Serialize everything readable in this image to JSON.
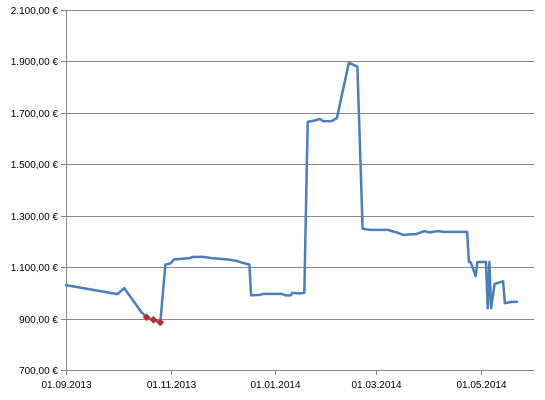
{
  "chart_data": {
    "type": "line",
    "title": "",
    "xlabel": "",
    "ylabel": "",
    "ylim": [
      700,
      2100
    ],
    "y_ticks": [
      {
        "value": 700,
        "label": "700,00 €"
      },
      {
        "value": 900,
        "label": "900,00 €"
      },
      {
        "value": 1100,
        "label": "1.100,00 €"
      },
      {
        "value": 1300,
        "label": "1.300,00 €"
      },
      {
        "value": 1500,
        "label": "1.500,00 €"
      },
      {
        "value": 1700,
        "label": "1.700,00 €"
      },
      {
        "value": 1900,
        "label": "1.900,00 €"
      },
      {
        "value": 2100,
        "label": "2.100,00 €"
      }
    ],
    "xlim": [
      "2013-09-01",
      "2014-06-01"
    ],
    "x_ticks": [
      {
        "value": "2013-09-01",
        "label": "01.09.2013"
      },
      {
        "value": "2013-11-01",
        "label": "01.11.2013"
      },
      {
        "value": "2014-01-01",
        "label": "01.01.2014"
      },
      {
        "value": "2014-03-01",
        "label": "01.03.2014"
      },
      {
        "value": "2014-05-01",
        "label": "01.05.2014"
      }
    ],
    "grid": "horizontal",
    "series_color": "#4a7ebb",
    "highlight_color": "#c0272d",
    "series": [
      {
        "points": [
          [
            "2013-09-01",
            1030
          ],
          [
            "2013-10-01",
            995
          ],
          [
            "2013-10-05",
            1018
          ],
          [
            "2013-10-15",
            925
          ],
          [
            "2013-10-18",
            905
          ],
          [
            "2013-10-22",
            895
          ],
          [
            "2013-10-26",
            885
          ],
          [
            "2013-10-29",
            1110
          ],
          [
            "2013-11-01",
            1115
          ],
          [
            "2013-11-03",
            1130
          ],
          [
            "2013-11-12",
            1135
          ],
          [
            "2013-11-14",
            1140
          ],
          [
            "2013-11-20",
            1140
          ],
          [
            "2013-11-25",
            1135
          ],
          [
            "2013-12-04",
            1130
          ],
          [
            "2013-12-09",
            1125
          ],
          [
            "2013-12-14",
            1115
          ],
          [
            "2013-12-17",
            1110
          ],
          [
            "2013-12-18",
            990
          ],
          [
            "2013-12-23",
            992
          ],
          [
            "2013-12-25",
            996
          ],
          [
            "2014-01-05",
            996
          ],
          [
            "2014-01-07",
            990
          ],
          [
            "2014-01-10",
            990
          ],
          [
            "2014-01-11",
            1000
          ],
          [
            "2014-01-15",
            998
          ],
          [
            "2014-01-18",
            1000
          ],
          [
            "2014-01-20",
            1665
          ],
          [
            "2014-01-25",
            1672
          ],
          [
            "2014-01-27",
            1676
          ],
          [
            "2014-01-29",
            1668
          ],
          [
            "2014-02-03",
            1668
          ],
          [
            "2014-02-06",
            1680
          ],
          [
            "2014-02-13",
            1895
          ],
          [
            "2014-02-18",
            1880
          ],
          [
            "2014-02-21",
            1250
          ],
          [
            "2014-02-25",
            1245
          ],
          [
            "2014-03-01",
            1245
          ],
          [
            "2014-03-08",
            1245
          ],
          [
            "2014-03-10",
            1240
          ],
          [
            "2014-03-13",
            1235
          ],
          [
            "2014-03-17",
            1225
          ],
          [
            "2014-03-21",
            1228
          ],
          [
            "2014-03-24",
            1228
          ],
          [
            "2014-03-27",
            1235
          ],
          [
            "2014-03-29",
            1240
          ],
          [
            "2014-04-01",
            1235
          ],
          [
            "2014-04-06",
            1240
          ],
          [
            "2014-04-09",
            1238
          ],
          [
            "2014-04-12",
            1237
          ],
          [
            "2014-04-18",
            1237
          ],
          [
            "2014-04-23",
            1237
          ],
          [
            "2014-04-24",
            1120
          ],
          [
            "2014-04-25",
            1120
          ],
          [
            "2014-04-28",
            1065
          ],
          [
            "2014-04-29",
            1120
          ],
          [
            "2014-05-04",
            1120
          ],
          [
            "2014-05-05",
            940
          ],
          [
            "2014-05-06",
            1120
          ],
          [
            "2014-05-07",
            940
          ],
          [
            "2014-05-09",
            1035
          ],
          [
            "2014-05-14",
            1045
          ],
          [
            "2014-05-15",
            960
          ],
          [
            "2014-05-19",
            965
          ],
          [
            "2014-05-22",
            965
          ]
        ],
        "markers": [
          [
            "2013-10-18",
            905
          ],
          [
            "2013-10-22",
            895
          ],
          [
            "2013-10-26",
            885
          ]
        ]
      }
    ]
  }
}
